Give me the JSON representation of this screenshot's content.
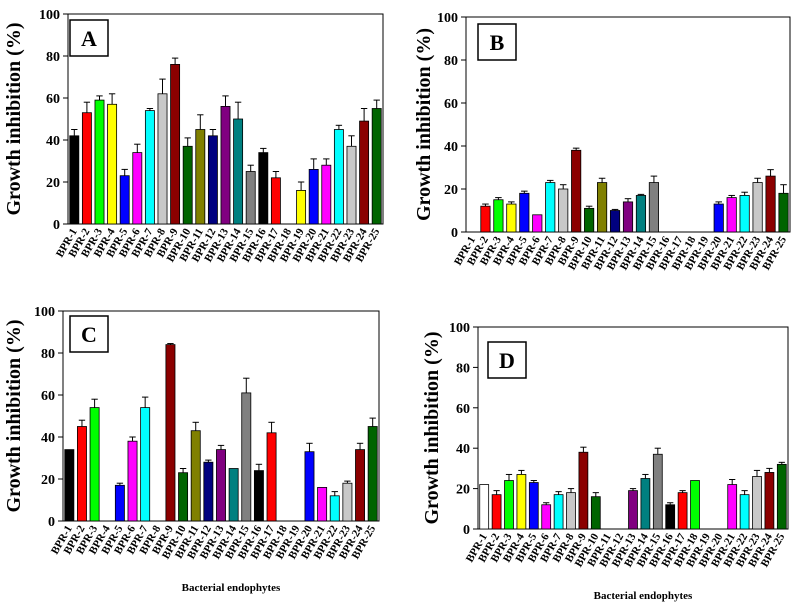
{
  "chart_data": [
    {
      "type": "bar",
      "panel": "A",
      "ylabel": "Growth inhibition (%)",
      "xlabel": "",
      "ylim": [
        0,
        100
      ],
      "yticks": [
        0,
        20,
        40,
        60,
        80,
        100
      ],
      "categories": [
        "BPR-1",
        "BPR-2",
        "BPR-3",
        "BPR-4",
        "BPR-5",
        "BPR-6",
        "BPR-7",
        "BPR-8",
        "BPR-9",
        "BPR-10",
        "BPR-11",
        "BPR-12",
        "BPR-13",
        "BPR-14",
        "BPR-15",
        "BPR-16",
        "BPR-17",
        "BPR-18",
        "BPR-19",
        "BPR-20",
        "BPR-21",
        "BPR-22",
        "BPR-23",
        "BPR-24",
        "BPR-25"
      ],
      "values": [
        42,
        53,
        59,
        57,
        23,
        34,
        54,
        62,
        76,
        37,
        45,
        42,
        56,
        50,
        25,
        34,
        22,
        0,
        16,
        26,
        28,
        45,
        37,
        49,
        55
      ],
      "errors": [
        3,
        5,
        2,
        5,
        3,
        4,
        1,
        7,
        3,
        4,
        7,
        3,
        5,
        8,
        3,
        2,
        3,
        0,
        4,
        5,
        3,
        2,
        5,
        6,
        4
      ]
    },
    {
      "type": "bar",
      "panel": "B",
      "ylabel": "Growth inhibition (%)",
      "xlabel": "",
      "ylim": [
        0,
        100
      ],
      "yticks": [
        0,
        20,
        40,
        60,
        80,
        100
      ],
      "categories": [
        "BPR-1",
        "BPR-2",
        "BPR-3",
        "BPR-4",
        "BPR-5",
        "BPR-6",
        "BPR-7",
        "BPR-8",
        "BPR-9",
        "BPR-10",
        "BPR-11",
        "BPR-12",
        "BPR-13",
        "BPR-14",
        "BPR-15",
        "BPR-16",
        "BPR-17",
        "BPR-18",
        "BPR-19",
        "BPR-20",
        "BPR-21",
        "BPR-22",
        "BPR-23",
        "BPR-24",
        "BPR-25"
      ],
      "values": [
        0,
        12,
        15,
        13,
        18,
        8,
        23,
        20,
        38,
        11,
        23,
        10,
        14,
        17,
        23,
        0,
        0,
        0,
        0,
        13,
        16,
        17,
        23,
        26,
        18
      ],
      "errors": [
        0,
        1,
        1,
        1,
        1,
        0,
        1,
        2,
        1,
        1,
        2,
        0.5,
        1.5,
        0.5,
        3,
        0,
        0,
        0,
        0,
        1,
        1,
        1.5,
        2,
        3,
        4
      ]
    },
    {
      "type": "bar",
      "panel": "C",
      "ylabel": "Growth inhibition (%)",
      "xlabel": "Bacterial endophytes",
      "ylim": [
        0,
        100
      ],
      "yticks": [
        0,
        20,
        40,
        60,
        80,
        100
      ],
      "categories": [
        "BPR-1",
        "BPR-2",
        "BPR-3",
        "BPR-4",
        "BPR-5",
        "BPR-6",
        "BPR-7",
        "BPR-8",
        "BPR-9",
        "BPR-10",
        "BPR-11",
        "BPR-12",
        "BPR-13",
        "BPR-14",
        "BPR-15",
        "BPR-16",
        "BPR-17",
        "BPR-18",
        "BPR-19",
        "BPR-20",
        "BPR-21",
        "BPR-22",
        "BPR-23",
        "BPR-24",
        "BPR-25"
      ],
      "values": [
        34,
        45,
        54,
        0,
        17,
        38,
        54,
        0,
        84,
        23,
        43,
        28,
        34,
        25,
        61,
        24,
        42,
        0,
        0,
        33,
        16,
        12,
        18,
        34,
        45
      ],
      "errors": [
        0,
        3,
        4,
        0,
        1,
        2,
        5,
        0,
        0.5,
        2,
        4,
        1,
        2,
        0,
        7,
        3,
        5,
        0,
        0,
        4,
        0,
        2,
        1,
        3,
        4
      ]
    },
    {
      "type": "bar",
      "panel": "D",
      "ylabel": "Growth inhibition (%)",
      "xlabel": "Bacterial endophytes",
      "ylim": [
        0,
        100
      ],
      "yticks": [
        0,
        20,
        40,
        60,
        80,
        100
      ],
      "categories": [
        "BPR-1",
        "BPR-2",
        "BPR-3",
        "BPR-4",
        "BPR-5",
        "BPR-6",
        "BPR-7",
        "BPR-8",
        "BPR-9",
        "BPR-10",
        "BPR-11",
        "BPR-12",
        "BPR-13",
        "BPR-14",
        "BPR-15",
        "BPR-16",
        "BPR-17",
        "BPR-18",
        "BPR-19",
        "BPR-20",
        "BPR-21",
        "BPR-22",
        "BPR-23",
        "BPR-24",
        "BPR-25"
      ],
      "values": [
        22,
        17,
        24,
        27,
        23,
        12,
        17,
        18,
        38,
        16,
        0,
        0,
        19,
        25,
        37,
        12,
        18,
        24,
        0,
        0,
        22,
        17,
        26,
        28,
        32
      ],
      "errors": [
        0,
        2,
        3,
        2,
        1,
        1,
        1.5,
        2,
        2.5,
        2,
        0,
        0,
        1,
        2,
        3,
        1,
        1,
        0,
        0,
        0,
        2.5,
        2,
        3,
        2,
        1
      ]
    }
  ],
  "bar_colors": [
    "#000000",
    "#ff0000",
    "#00ff00",
    "#ffff00",
    "#0000ff",
    "#ff00ff",
    "#00ffff",
    "#c8c8c8",
    "#8b0000",
    "#006400",
    "#808000",
    "#000080",
    "#800080",
    "#008080",
    "#808080",
    "#000000",
    "#ff0000",
    "#00ff00",
    "#ffff00",
    "#0000ff",
    "#ff00ff",
    "#00ffff",
    "#c8c8c8",
    "#8b0000",
    "#006400"
  ],
  "panel_d_first_bar_color": "#ffffff"
}
